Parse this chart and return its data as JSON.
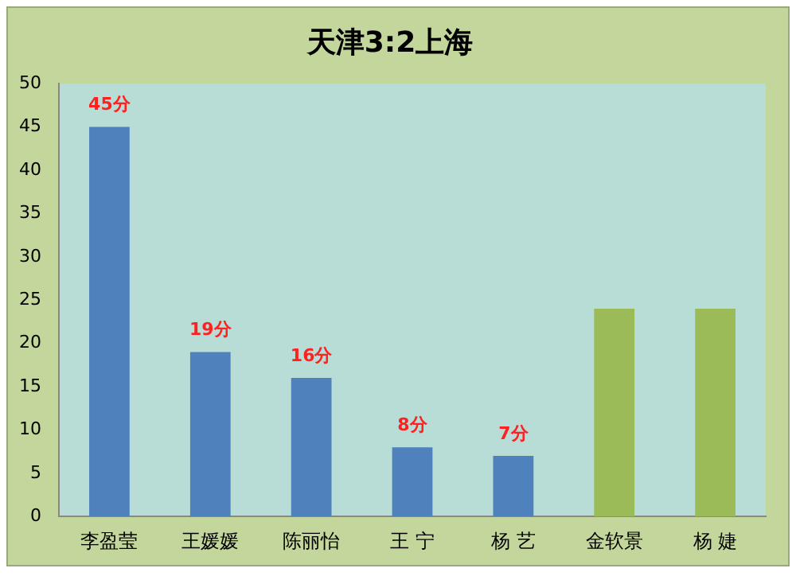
{
  "chart_data": {
    "type": "bar",
    "title": "天津3:2上海",
    "categories": [
      "李盈莹",
      "王媛媛",
      "陈丽怡",
      "王 宁",
      "杨 艺",
      "金软景",
      "杨 婕"
    ],
    "values": [
      45,
      19,
      16,
      8,
      7,
      24,
      24
    ],
    "colors": [
      "#4f81bd",
      "#4f81bd",
      "#4f81bd",
      "#4f81bd",
      "#4f81bd",
      "#9bbb59",
      "#9bbb59"
    ],
    "value_labels": [
      "45分",
      "19分",
      "16分",
      "8分",
      "7分",
      null,
      null
    ],
    "ylim": [
      0,
      50
    ],
    "yticks": [
      0,
      5,
      10,
      15,
      20,
      25,
      30,
      35,
      40,
      45,
      50
    ],
    "grid": false,
    "legend": false
  }
}
